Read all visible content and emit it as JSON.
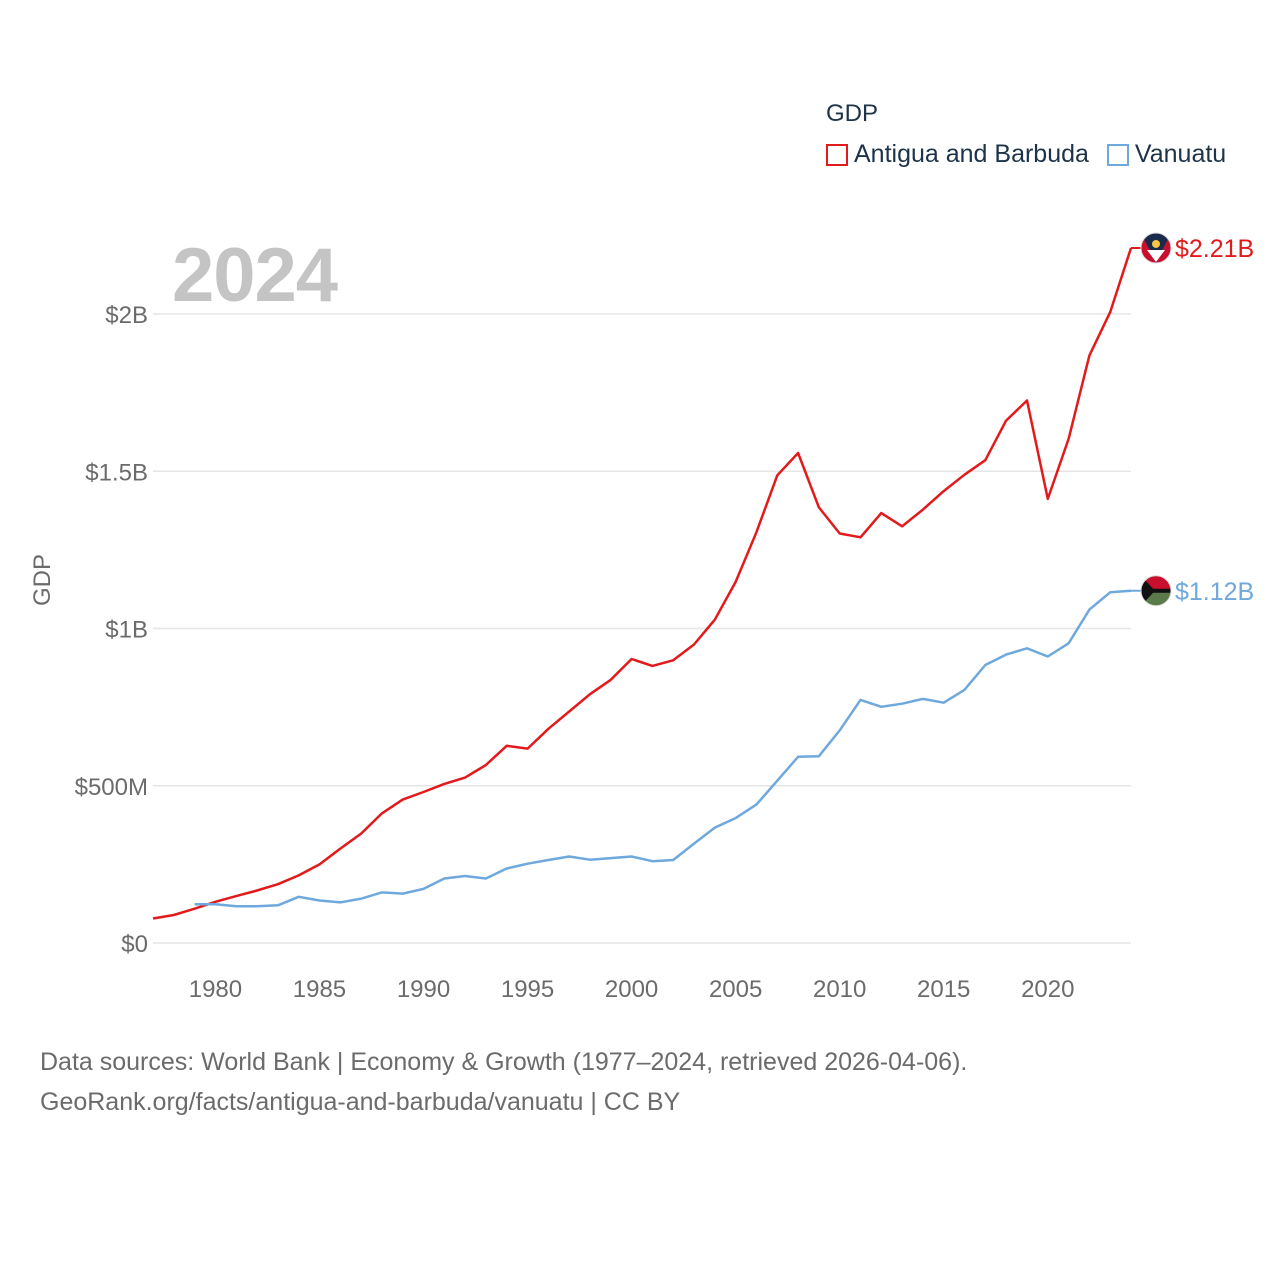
{
  "legend": {
    "title": "GDP",
    "items": [
      {
        "label": "Antigua and Barbuda",
        "color": "#e31a1c"
      },
      {
        "label": "Vanuatu",
        "color": "#6fa8dc"
      }
    ]
  },
  "year_label": "2024",
  "footer": {
    "line1": "Data sources: World Bank | Economy & Growth (1977–2024, retrieved 2026-04-06).",
    "line2": "GeoRank.org/facts/antigua-and-barbuda/vanuatu | CC BY"
  },
  "chart_data": {
    "type": "line",
    "title": "GDP",
    "ylabel": "GDP",
    "xlabel": "",
    "xlim": [
      1977,
      2024
    ],
    "ylim": [
      0,
      2300000000
    ],
    "x_ticks": [
      1980,
      1985,
      1990,
      1995,
      2000,
      2005,
      2010,
      2015,
      2020
    ],
    "x_tick_labels": [
      "1980",
      "1985",
      "1990",
      "1995",
      "2000",
      "2005",
      "2010",
      "2015",
      "2020"
    ],
    "y_ticks": [
      0,
      500000000,
      1000000000,
      1500000000,
      2000000000
    ],
    "y_tick_labels": [
      "$0",
      "$500M",
      "$1B",
      "$1.5B",
      "$2B"
    ],
    "grid": true,
    "series": [
      {
        "name": "Antigua and Barbuda",
        "color": "#e31a1c",
        "end_label": "$2.21B",
        "x": [
          1977,
          1978,
          1979,
          1980,
          1981,
          1982,
          1983,
          1984,
          1985,
          1986,
          1987,
          1988,
          1989,
          1990,
          1991,
          1992,
          1993,
          1994,
          1995,
          1996,
          1997,
          1998,
          1999,
          2000,
          2001,
          2002,
          2003,
          2004,
          2005,
          2006,
          2007,
          2008,
          2009,
          2010,
          2011,
          2012,
          2013,
          2014,
          2015,
          2016,
          2017,
          2018,
          2019,
          2020,
          2021,
          2022,
          2023,
          2024
        ],
        "values": [
          78000000,
          89000000,
          109000000,
          131000000,
          149000000,
          167000000,
          187000000,
          215000000,
          250000000,
          300000000,
          348000000,
          412000000,
          456000000,
          480000000,
          506000000,
          526000000,
          566000000,
          627000000,
          618000000,
          681000000,
          736000000,
          791000000,
          837000000,
          903000000,
          881000000,
          899000000,
          949000000,
          1028000000,
          1148000000,
          1306000000,
          1487000000,
          1558000000,
          1385000000,
          1302000000,
          1290000000,
          1367000000,
          1325000000,
          1378000000,
          1437000000,
          1489000000,
          1535000000,
          1661000000,
          1725000000,
          1412000000,
          1603000000,
          1868000000,
          2006000000,
          2210000000
        ]
      },
      {
        "name": "Vanuatu",
        "color": "#6fa8dc",
        "end_label": "$1.12B",
        "x": [
          1979,
          1980,
          1981,
          1982,
          1983,
          1984,
          1985,
          1986,
          1987,
          1988,
          1989,
          1990,
          1991,
          1992,
          1993,
          1994,
          1995,
          1996,
          1997,
          1998,
          1999,
          2000,
          2001,
          2002,
          2003,
          2004,
          2005,
          2006,
          2007,
          2008,
          2009,
          2010,
          2011,
          2012,
          2013,
          2014,
          2015,
          2016,
          2017,
          2018,
          2019,
          2020,
          2021,
          2022,
          2023,
          2024
        ],
        "values": [
          123000000,
          123000000,
          117000000,
          117000000,
          120000000,
          147000000,
          135000000,
          129000000,
          141000000,
          161000000,
          157000000,
          172000000,
          205000000,
          213000000,
          205000000,
          237000000,
          252000000,
          264000000,
          275000000,
          265000000,
          270000000,
          275000000,
          260000000,
          264000000,
          316000000,
          367000000,
          397000000,
          440000000,
          516000000,
          592000000,
          594000000,
          676000000,
          773000000,
          751000000,
          761000000,
          776000000,
          764000000,
          805000000,
          884000000,
          917000000,
          937000000,
          911000000,
          953000000,
          1060000000,
          1115000000,
          1120000000
        ]
      }
    ]
  }
}
